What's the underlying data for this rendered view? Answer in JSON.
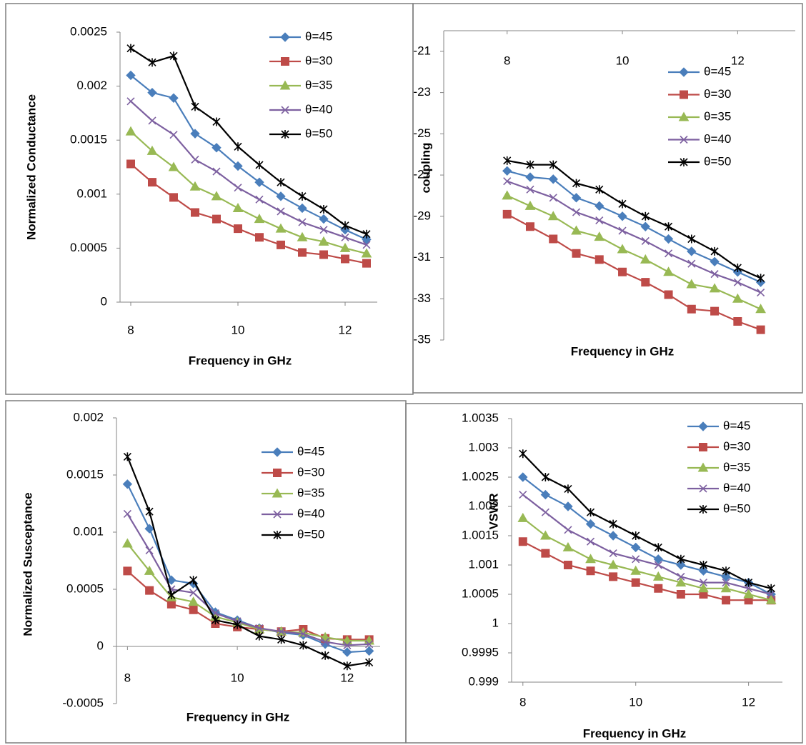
{
  "chart_data": [
    {
      "type": "line",
      "x_label": "Frequency in GHz",
      "y_label": "Normalized Conductance",
      "x": [
        8,
        8.4,
        8.8,
        9.2,
        9.6,
        10,
        10.4,
        10.8,
        11.2,
        11.6,
        12,
        12.4
      ],
      "xlim": [
        7.8,
        12.6
      ],
      "xticks": [
        8,
        10,
        12
      ],
      "ylim": [
        0,
        0.0025
      ],
      "yticks": [
        0,
        0.0005,
        0.001,
        0.0015,
        0.002,
        0.0025
      ],
      "series": [
        {
          "name": "θ=45",
          "color": "#4a7ebb",
          "marker": "diamond",
          "values": [
            0.0021,
            0.00194,
            0.00189,
            0.00156,
            0.00143,
            0.00126,
            0.00111,
            0.00098,
            0.00087,
            0.00077,
            0.00067,
            0.00058
          ]
        },
        {
          "name": "θ=30",
          "color": "#be4b48",
          "marker": "square",
          "values": [
            0.00128,
            0.00111,
            0.00097,
            0.00083,
            0.00077,
            0.00068,
            0.0006,
            0.00053,
            0.00046,
            0.00044,
            0.0004,
            0.00036
          ]
        },
        {
          "name": "θ=35",
          "color": "#98b954",
          "marker": "triangle",
          "values": [
            0.00158,
            0.0014,
            0.00125,
            0.00107,
            0.00098,
            0.00087,
            0.00077,
            0.00068,
            0.0006,
            0.00056,
            0.0005,
            0.00045
          ]
        },
        {
          "name": "θ=40",
          "color": "#7d60a0",
          "marker": "x",
          "values": [
            0.00186,
            0.00168,
            0.00155,
            0.00132,
            0.00121,
            0.00106,
            0.00095,
            0.00084,
            0.00074,
            0.00067,
            0.0006,
            0.00053
          ]
        },
        {
          "name": "θ=50",
          "color": "#000000",
          "marker": "star",
          "values": [
            0.00235,
            0.00222,
            0.00228,
            0.00181,
            0.00167,
            0.00144,
            0.00127,
            0.00111,
            0.00098,
            0.00086,
            0.00071,
            0.00063
          ]
        }
      ]
    },
    {
      "type": "line",
      "x_label": "Frequency in GHz",
      "y_label": "coupling",
      "x": [
        8,
        8.4,
        8.8,
        9.2,
        9.6,
        10,
        10.4,
        10.8,
        11.2,
        11.6,
        12,
        12.4
      ],
      "xlim": [
        6.9,
        13
      ],
      "xticks": [
        8,
        10,
        12
      ],
      "ylim": [
        -35,
        -20
      ],
      "yticks": [
        -35,
        -33,
        -31,
        -29,
        -27,
        -25,
        -23,
        -21
      ],
      "series": [
        {
          "name": "θ=45",
          "color": "#4a7ebb",
          "marker": "diamond",
          "values": [
            -26.8,
            -27.1,
            -27.2,
            -28.1,
            -28.5,
            -29.0,
            -29.5,
            -30.1,
            -30.7,
            -31.2,
            -31.7,
            -32.2
          ]
        },
        {
          "name": "θ=30",
          "color": "#be4b48",
          "marker": "square",
          "values": [
            -28.9,
            -29.5,
            -30.1,
            -30.8,
            -31.1,
            -31.7,
            -32.2,
            -32.8,
            -33.5,
            -33.6,
            -34.1,
            -34.5
          ]
        },
        {
          "name": "θ=35",
          "color": "#98b954",
          "marker": "triangle",
          "values": [
            -28.0,
            -28.5,
            -29.0,
            -29.7,
            -30.0,
            -30.6,
            -31.1,
            -31.7,
            -32.3,
            -32.5,
            -33.0,
            -33.5
          ]
        },
        {
          "name": "θ=40",
          "color": "#7d60a0",
          "marker": "x",
          "values": [
            -27.3,
            -27.7,
            -28.1,
            -28.8,
            -29.2,
            -29.7,
            -30.2,
            -30.8,
            -31.3,
            -31.8,
            -32.2,
            -32.7
          ]
        },
        {
          "name": "θ=50",
          "color": "#000000",
          "marker": "star",
          "values": [
            -26.3,
            -26.5,
            -26.5,
            -27.4,
            -27.7,
            -28.4,
            -29.0,
            -29.5,
            -30.1,
            -30.7,
            -31.5,
            -32.0
          ]
        }
      ]
    },
    {
      "type": "line",
      "x_label": "Frequency in GHz",
      "y_label": "Normalized Susceptance",
      "x": [
        8,
        8.4,
        8.8,
        9.2,
        9.6,
        10,
        10.4,
        10.8,
        11.2,
        11.6,
        12,
        12.4
      ],
      "xlim": [
        7.8,
        12.6
      ],
      "xticks": [
        8,
        10,
        12
      ],
      "ylim": [
        -0.0005,
        0.002
      ],
      "yticks": [
        -0.0005,
        0,
        0.0005,
        0.001,
        0.0015,
        0.002
      ],
      "series": [
        {
          "name": "θ=45",
          "color": "#4a7ebb",
          "marker": "diamond",
          "values": [
            0.00142,
            0.00103,
            0.00058,
            0.00055,
            0.0003,
            0.00023,
            0.00016,
            0.00012,
            0.0001,
            2e-05,
            -5e-05,
            -4e-05
          ]
        },
        {
          "name": "θ=30",
          "color": "#be4b48",
          "marker": "square",
          "values": [
            0.00066,
            0.00049,
            0.00037,
            0.00032,
            0.0002,
            0.00017,
            0.00015,
            0.00013,
            0.00015,
            7e-05,
            6e-05,
            6e-05
          ]
        },
        {
          "name": "θ=35",
          "color": "#98b954",
          "marker": "triangle",
          "values": [
            0.0009,
            0.00066,
            0.00043,
            0.00039,
            0.00026,
            0.00021,
            0.00015,
            0.00013,
            0.00012,
            8e-05,
            5e-05,
            5e-05
          ]
        },
        {
          "name": "θ=40",
          "color": "#7d60a0",
          "marker": "x",
          "values": [
            0.00116,
            0.00084,
            0.0005,
            0.00047,
            0.00029,
            0.00022,
            0.00016,
            0.00013,
            0.00011,
            4e-05,
            1e-05,
            2e-05
          ]
        },
        {
          "name": "θ=50",
          "color": "#000000",
          "marker": "star",
          "values": [
            0.00166,
            0.00118,
            0.00045,
            0.00058,
            0.00023,
            0.00019,
            9e-05,
            6e-05,
            1e-05,
            -8e-05,
            -0.00017,
            -0.00014
          ]
        }
      ]
    },
    {
      "type": "line",
      "x_label": "Frequency in GHz",
      "y_label": "VSWR",
      "x": [
        8,
        8.4,
        8.8,
        9.2,
        9.6,
        10,
        10.4,
        10.8,
        11.2,
        11.6,
        12,
        12.4
      ],
      "xlim": [
        7.8,
        12.6
      ],
      "xticks": [
        8,
        10,
        12
      ],
      "ylim": [
        0.999,
        1.0035
      ],
      "yticks": [
        0.999,
        0.9995,
        1,
        1.0005,
        1.001,
        1.0015,
        1.002,
        1.0025,
        1.003,
        1.0035
      ],
      "series": [
        {
          "name": "θ=45",
          "color": "#4a7ebb",
          "marker": "diamond",
          "values": [
            1.0025,
            1.0022,
            1.002,
            1.0017,
            1.0015,
            1.0013,
            1.0011,
            1.001,
            1.0009,
            1.0008,
            1.0007,
            1.0005
          ]
        },
        {
          "name": "θ=30",
          "color": "#be4b48",
          "marker": "square",
          "values": [
            1.0014,
            1.0012,
            1.001,
            1.0009,
            1.0008,
            1.0007,
            1.0006,
            1.0005,
            1.0005,
            1.0004,
            1.0004,
            1.0004
          ]
        },
        {
          "name": "θ=35",
          "color": "#98b954",
          "marker": "triangle",
          "values": [
            1.0018,
            1.0015,
            1.0013,
            1.0011,
            1.001,
            1.0009,
            1.0008,
            1.0007,
            1.0006,
            1.0006,
            1.0005,
            1.0004
          ]
        },
        {
          "name": "θ=40",
          "color": "#7d60a0",
          "marker": "x",
          "values": [
            1.0022,
            1.0019,
            1.0016,
            1.0014,
            1.0012,
            1.0011,
            1.001,
            1.0008,
            1.0007,
            1.0007,
            1.0006,
            1.0005
          ]
        },
        {
          "name": "θ=50",
          "color": "#000000",
          "marker": "star",
          "values": [
            1.0029,
            1.0025,
            1.0023,
            1.0019,
            1.0017,
            1.0015,
            1.0013,
            1.0011,
            1.001,
            1.0009,
            1.0007,
            1.0006
          ]
        }
      ]
    }
  ]
}
